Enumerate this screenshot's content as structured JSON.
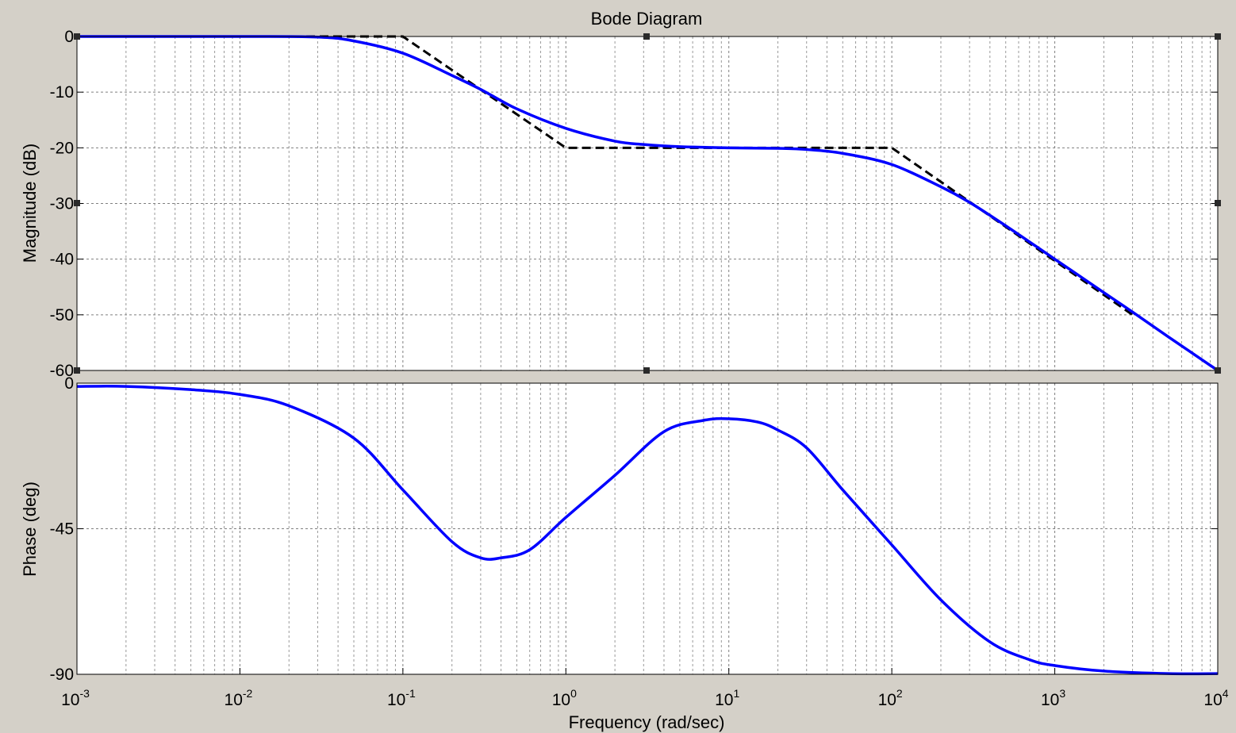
{
  "chart_data": [
    {
      "type": "line",
      "title": "Bode Diagram",
      "xlabel": "Frequency  (rad/sec)",
      "ylabel": "Magnitude (dB)",
      "xscale": "log",
      "xlim": [
        0.001,
        10000
      ],
      "ylim": [
        -60,
        0
      ],
      "yticks": [
        "0",
        "-10",
        "-20",
        "-30",
        "-40",
        "-50",
        "-60"
      ],
      "grid": true,
      "series": [
        {
          "color": "#0000ff",
          "style": "solid",
          "x": [
            0.001,
            0.01,
            0.03,
            0.05,
            0.1,
            0.2,
            0.3,
            0.5,
            1,
            2,
            3,
            5,
            10,
            20,
            30,
            50,
            100,
            200,
            300,
            500,
            1000,
            2000,
            3000,
            5000,
            10000
          ],
          "values": [
            0,
            0,
            -0.1,
            -0.8,
            -3,
            -7,
            -9.5,
            -13,
            -16.5,
            -18.8,
            -19.4,
            -19.8,
            -20,
            -20.1,
            -20.3,
            -21,
            -23,
            -27,
            -29.8,
            -34,
            -40,
            -46,
            -49.5,
            -54,
            -60
          ]
        },
        {
          "color": "#000000",
          "style": "dashed",
          "x": [
            0.001,
            0.1,
            1,
            100,
            3000
          ],
          "values": [
            0,
            0,
            -20,
            -20,
            -50
          ]
        }
      ]
    },
    {
      "type": "line",
      "xlabel": "Frequency  (rad/sec)",
      "ylabel": "Phase (deg)",
      "xscale": "log",
      "xlim": [
        0.001,
        10000
      ],
      "ylim": [
        -90,
        0
      ],
      "yticks": [
        "0",
        "-45",
        "-90"
      ],
      "xticks": [
        {
          "base": "10",
          "exp": "-3"
        },
        {
          "base": "10",
          "exp": "-2"
        },
        {
          "base": "10",
          "exp": "-1"
        },
        {
          "base": "10",
          "exp": "0"
        },
        {
          "base": "10",
          "exp": "1"
        },
        {
          "base": "10",
          "exp": "2"
        },
        {
          "base": "10",
          "exp": "3"
        },
        {
          "base": "10",
          "exp": "4"
        }
      ],
      "grid": true,
      "series": [
        {
          "color": "#0000ff",
          "style": "solid",
          "x": [
            0.001,
            0.002,
            0.005,
            0.01,
            0.02,
            0.05,
            0.1,
            0.2,
            0.3,
            0.4,
            0.6,
            1,
            2,
            4,
            7,
            10,
            15,
            20,
            30,
            50,
            100,
            200,
            400,
            700,
            1000,
            2000,
            5000,
            10000
          ],
          "values": [
            -1,
            -1,
            -2,
            -3.5,
            -7,
            -17,
            -33,
            -49,
            -54,
            -54,
            -51.5,
            -41.5,
            -28.5,
            -15,
            -11.5,
            -11,
            -12,
            -14.5,
            -20,
            -33,
            -50,
            -67,
            -80,
            -85.5,
            -87.3,
            -89,
            -89.8,
            -89.8
          ]
        }
      ]
    }
  ]
}
